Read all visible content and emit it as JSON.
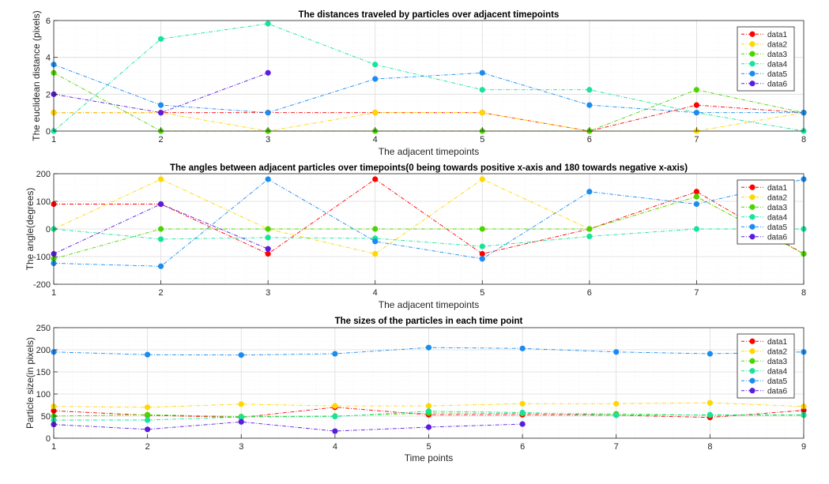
{
  "colors": {
    "data1": "#ff0000",
    "data2": "#ffd700",
    "data3": "#4cd400",
    "data4": "#17e39a",
    "data5": "#1a8cf0",
    "data6": "#5a1ce0"
  },
  "chart_data": [
    {
      "type": "line",
      "title": "The distances traveled by particles over adjacent timepoints",
      "xlabel": "The adjacent timepoints",
      "ylabel": "The euclidean distance (pixels)",
      "xlim": [
        1,
        8
      ],
      "ylim": [
        0,
        6
      ],
      "xticks": [
        1,
        2,
        3,
        4,
        5,
        6,
        7,
        8
      ],
      "yticks": [
        0,
        2,
        4,
        6
      ],
      "grid": true,
      "legend_position": "top-right",
      "series": [
        {
          "name": "data1",
          "x": [
            1,
            2,
            3,
            4,
            5,
            6,
            7,
            8
          ],
          "y": [
            1,
            1,
            1,
            1,
            1,
            0,
            1.41,
            1
          ]
        },
        {
          "name": "data2",
          "x": [
            1,
            2,
            3,
            4,
            5,
            6,
            7,
            8
          ],
          "y": [
            1,
            1,
            0,
            1,
            1,
            0,
            0,
            1
          ]
        },
        {
          "name": "data3",
          "x": [
            1,
            2,
            3,
            4,
            5,
            6,
            7,
            8
          ],
          "y": [
            3.16,
            0,
            0,
            0,
            0,
            0,
            2.24,
            1
          ]
        },
        {
          "name": "data4",
          "x": [
            1,
            2,
            3,
            4,
            5,
            6,
            7,
            8
          ],
          "y": [
            0,
            5,
            5.83,
            3.61,
            2.24,
            2.24,
            1,
            0
          ]
        },
        {
          "name": "data5",
          "x": [
            1,
            2,
            3,
            4,
            5,
            6,
            7,
            8
          ],
          "y": [
            3.61,
            1.41,
            1,
            2.83,
            3.16,
            1.41,
            1,
            1
          ]
        },
        {
          "name": "data6",
          "x": [
            1,
            2,
            3
          ],
          "y": [
            2,
            1,
            3.16
          ]
        }
      ]
    },
    {
      "type": "line",
      "title": "The angles between adjacent particles over timepoints(0 being towards positive x-axis and 180 towards negative x-axis)",
      "xlabel": "The adjacent timepoints",
      "ylabel": "The angle(degrees)",
      "xlim": [
        1,
        8
      ],
      "ylim": [
        -200,
        200
      ],
      "xticks": [
        1,
        2,
        3,
        4,
        5,
        6,
        7,
        8
      ],
      "yticks": [
        -200,
        -100,
        0,
        100,
        200
      ],
      "grid": true,
      "legend_position": "top-right",
      "series": [
        {
          "name": "data1",
          "x": [
            1,
            2,
            3,
            4,
            5,
            6,
            7,
            8
          ],
          "y": [
            90,
            90,
            -90,
            180,
            -90,
            0,
            135,
            -90
          ]
        },
        {
          "name": "data2",
          "x": [
            1,
            2,
            3,
            4,
            5,
            6,
            7,
            8
          ],
          "y": [
            0,
            180,
            0,
            -90,
            180,
            0,
            117,
            -90
          ]
        },
        {
          "name": "data3",
          "x": [
            1,
            2,
            3,
            4,
            5,
            6,
            7,
            8
          ],
          "y": [
            -108,
            0,
            0,
            0,
            0,
            0,
            117,
            -90
          ]
        },
        {
          "name": "data4",
          "x": [
            1,
            2,
            3,
            4,
            5,
            6,
            7,
            8
          ],
          "y": [
            0,
            -37,
            -31,
            -34,
            -63,
            -27,
            0,
            0
          ]
        },
        {
          "name": "data5",
          "x": [
            1,
            2,
            3,
            4,
            5,
            6,
            7,
            8
          ],
          "y": [
            -124,
            -135,
            180,
            -45,
            -108,
            135,
            90,
            180
          ]
        },
        {
          "name": "data6",
          "x": [
            1,
            2,
            3
          ],
          "y": [
            -90,
            90,
            -72
          ]
        }
      ]
    },
    {
      "type": "line",
      "title": "The sizes of the particles in each time point",
      "xlabel": "Time points",
      "ylabel": "Particle size(in pixels)",
      "xlim": [
        1,
        9
      ],
      "ylim": [
        0,
        250
      ],
      "xticks": [
        1,
        2,
        3,
        4,
        5,
        6,
        7,
        8,
        9
      ],
      "yticks": [
        0,
        50,
        100,
        150,
        200,
        250
      ],
      "grid": true,
      "legend_position": "top-right",
      "series": [
        {
          "name": "data1",
          "x": [
            1,
            2,
            3,
            4,
            5,
            6,
            7,
            8,
            9
          ],
          "y": [
            62,
            52,
            47,
            70,
            53,
            53,
            52,
            47,
            63
          ]
        },
        {
          "name": "data2",
          "x": [
            1,
            2,
            3,
            4,
            5,
            6,
            7,
            8,
            9
          ],
          "y": [
            72,
            70,
            77,
            73,
            73,
            78,
            78,
            80,
            72
          ]
        },
        {
          "name": "data3",
          "x": [
            1,
            2,
            3,
            4,
            5,
            6,
            7,
            8,
            9
          ],
          "y": [
            50,
            53,
            49,
            50,
            57,
            56,
            55,
            52,
            52
          ]
        },
        {
          "name": "data4",
          "x": [
            1,
            2,
            3,
            4,
            5,
            6,
            7,
            8,
            9
          ],
          "y": [
            41,
            41,
            48,
            49,
            61,
            58,
            52,
            53,
            53
          ]
        },
        {
          "name": "data5",
          "x": [
            1,
            2,
            3,
            4,
            5,
            6,
            7,
            8,
            9
          ],
          "y": [
            195,
            189,
            188,
            191,
            205,
            203,
            195,
            191,
            195
          ]
        },
        {
          "name": "data6",
          "x": [
            1,
            2,
            3,
            4,
            5,
            6
          ],
          "y": [
            31,
            20,
            37,
            16,
            25,
            32
          ]
        }
      ]
    }
  ]
}
